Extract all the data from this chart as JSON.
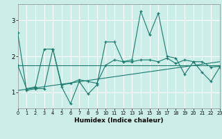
{
  "xlabel": "Humidex (Indice chaleur)",
  "background_color": "#cceee8",
  "grid_color": "#ffffff",
  "line_color": "#1a7a6e",
  "xlim": [
    0,
    23
  ],
  "ylim": [
    0.55,
    3.45
  ],
  "yticks": [
    1,
    2,
    3
  ],
  "xticks": [
    0,
    1,
    2,
    3,
    4,
    5,
    6,
    7,
    8,
    9,
    10,
    11,
    12,
    13,
    14,
    15,
    16,
    17,
    18,
    19,
    20,
    21,
    22,
    23
  ],
  "line1_x": [
    0,
    1,
    2,
    3,
    4,
    5,
    6,
    7,
    8,
    9,
    10,
    11,
    12,
    13,
    14,
    15,
    16,
    17,
    18,
    19,
    20,
    21,
    22,
    23
  ],
  "line1_y": [
    2.65,
    1.05,
    1.1,
    1.1,
    2.2,
    1.15,
    0.68,
    1.3,
    0.95,
    1.2,
    2.4,
    2.4,
    1.85,
    1.9,
    3.25,
    2.6,
    3.2,
    2.0,
    1.95,
    1.5,
    1.85,
    1.55,
    1.3,
    1.7
  ],
  "line2_x": [
    0,
    1,
    2,
    3,
    4,
    5,
    6,
    7,
    8,
    9,
    10,
    11,
    12,
    13,
    14,
    15,
    16,
    17,
    18,
    19,
    20,
    21,
    22,
    23
  ],
  "line2_y": [
    1.75,
    1.1,
    1.15,
    2.2,
    2.2,
    1.2,
    1.25,
    1.35,
    1.3,
    1.25,
    1.75,
    1.9,
    1.85,
    1.85,
    1.9,
    1.9,
    1.85,
    1.95,
    1.8,
    1.9,
    1.85,
    1.85,
    1.7,
    1.72
  ],
  "line3_x": [
    0,
    23
  ],
  "line3_y": [
    1.75,
    1.75
  ],
  "line4_x": [
    0,
    23
  ],
  "line4_y": [
    1.05,
    1.85
  ]
}
